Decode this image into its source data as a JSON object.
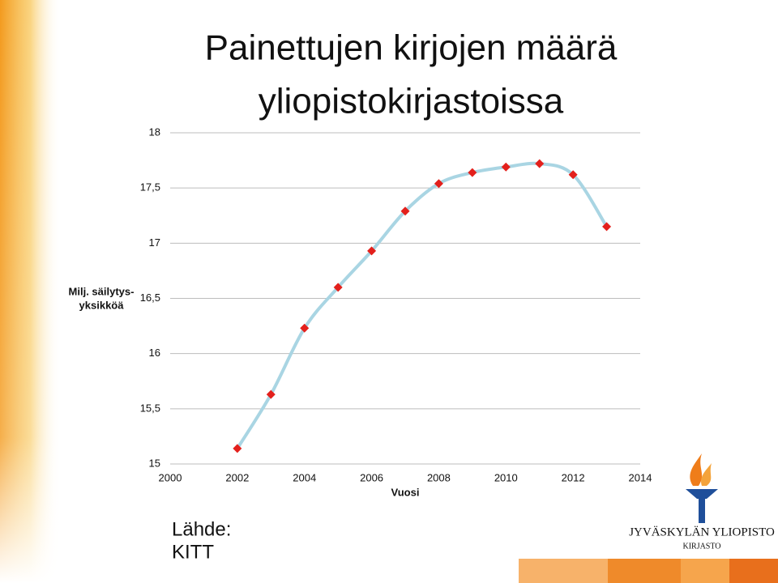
{
  "title": [
    "Painettujen kirjojen määrä",
    "yliopistokirjastoissa"
  ],
  "chart_data": {
    "type": "line",
    "ylabel": [
      "Milj. säilytys-",
      "yksikköä"
    ],
    "xlabel": "Vuosi",
    "x": [
      2002,
      2003,
      2004,
      2005,
      2006,
      2007,
      2008,
      2009,
      2010,
      2011,
      2012,
      2013
    ],
    "values": [
      15.14,
      15.63,
      16.23,
      16.6,
      16.93,
      17.29,
      17.54,
      17.64,
      17.69,
      17.72,
      17.62,
      17.15
    ],
    "line_color": "#a9d5e3",
    "marker_color": "#e3201c",
    "xlim": [
      2000,
      2014
    ],
    "xticks": [
      2000,
      2002,
      2004,
      2006,
      2008,
      2010,
      2012,
      2014
    ],
    "ylim": [
      15,
      18
    ],
    "yticks": [
      15,
      {
        "value": 15.5,
        "label": "15,5"
      },
      16,
      {
        "value": 16.5,
        "label": "16,5"
      },
      17,
      {
        "value": 17.5,
        "label": "17,5"
      },
      18
    ],
    "grid": true
  },
  "source": [
    "Lähde:",
    "KITT"
  ],
  "logo": {
    "name": "JYVÄSKYLÄN YLIOPISTO",
    "unit": "KIRJASTO"
  }
}
